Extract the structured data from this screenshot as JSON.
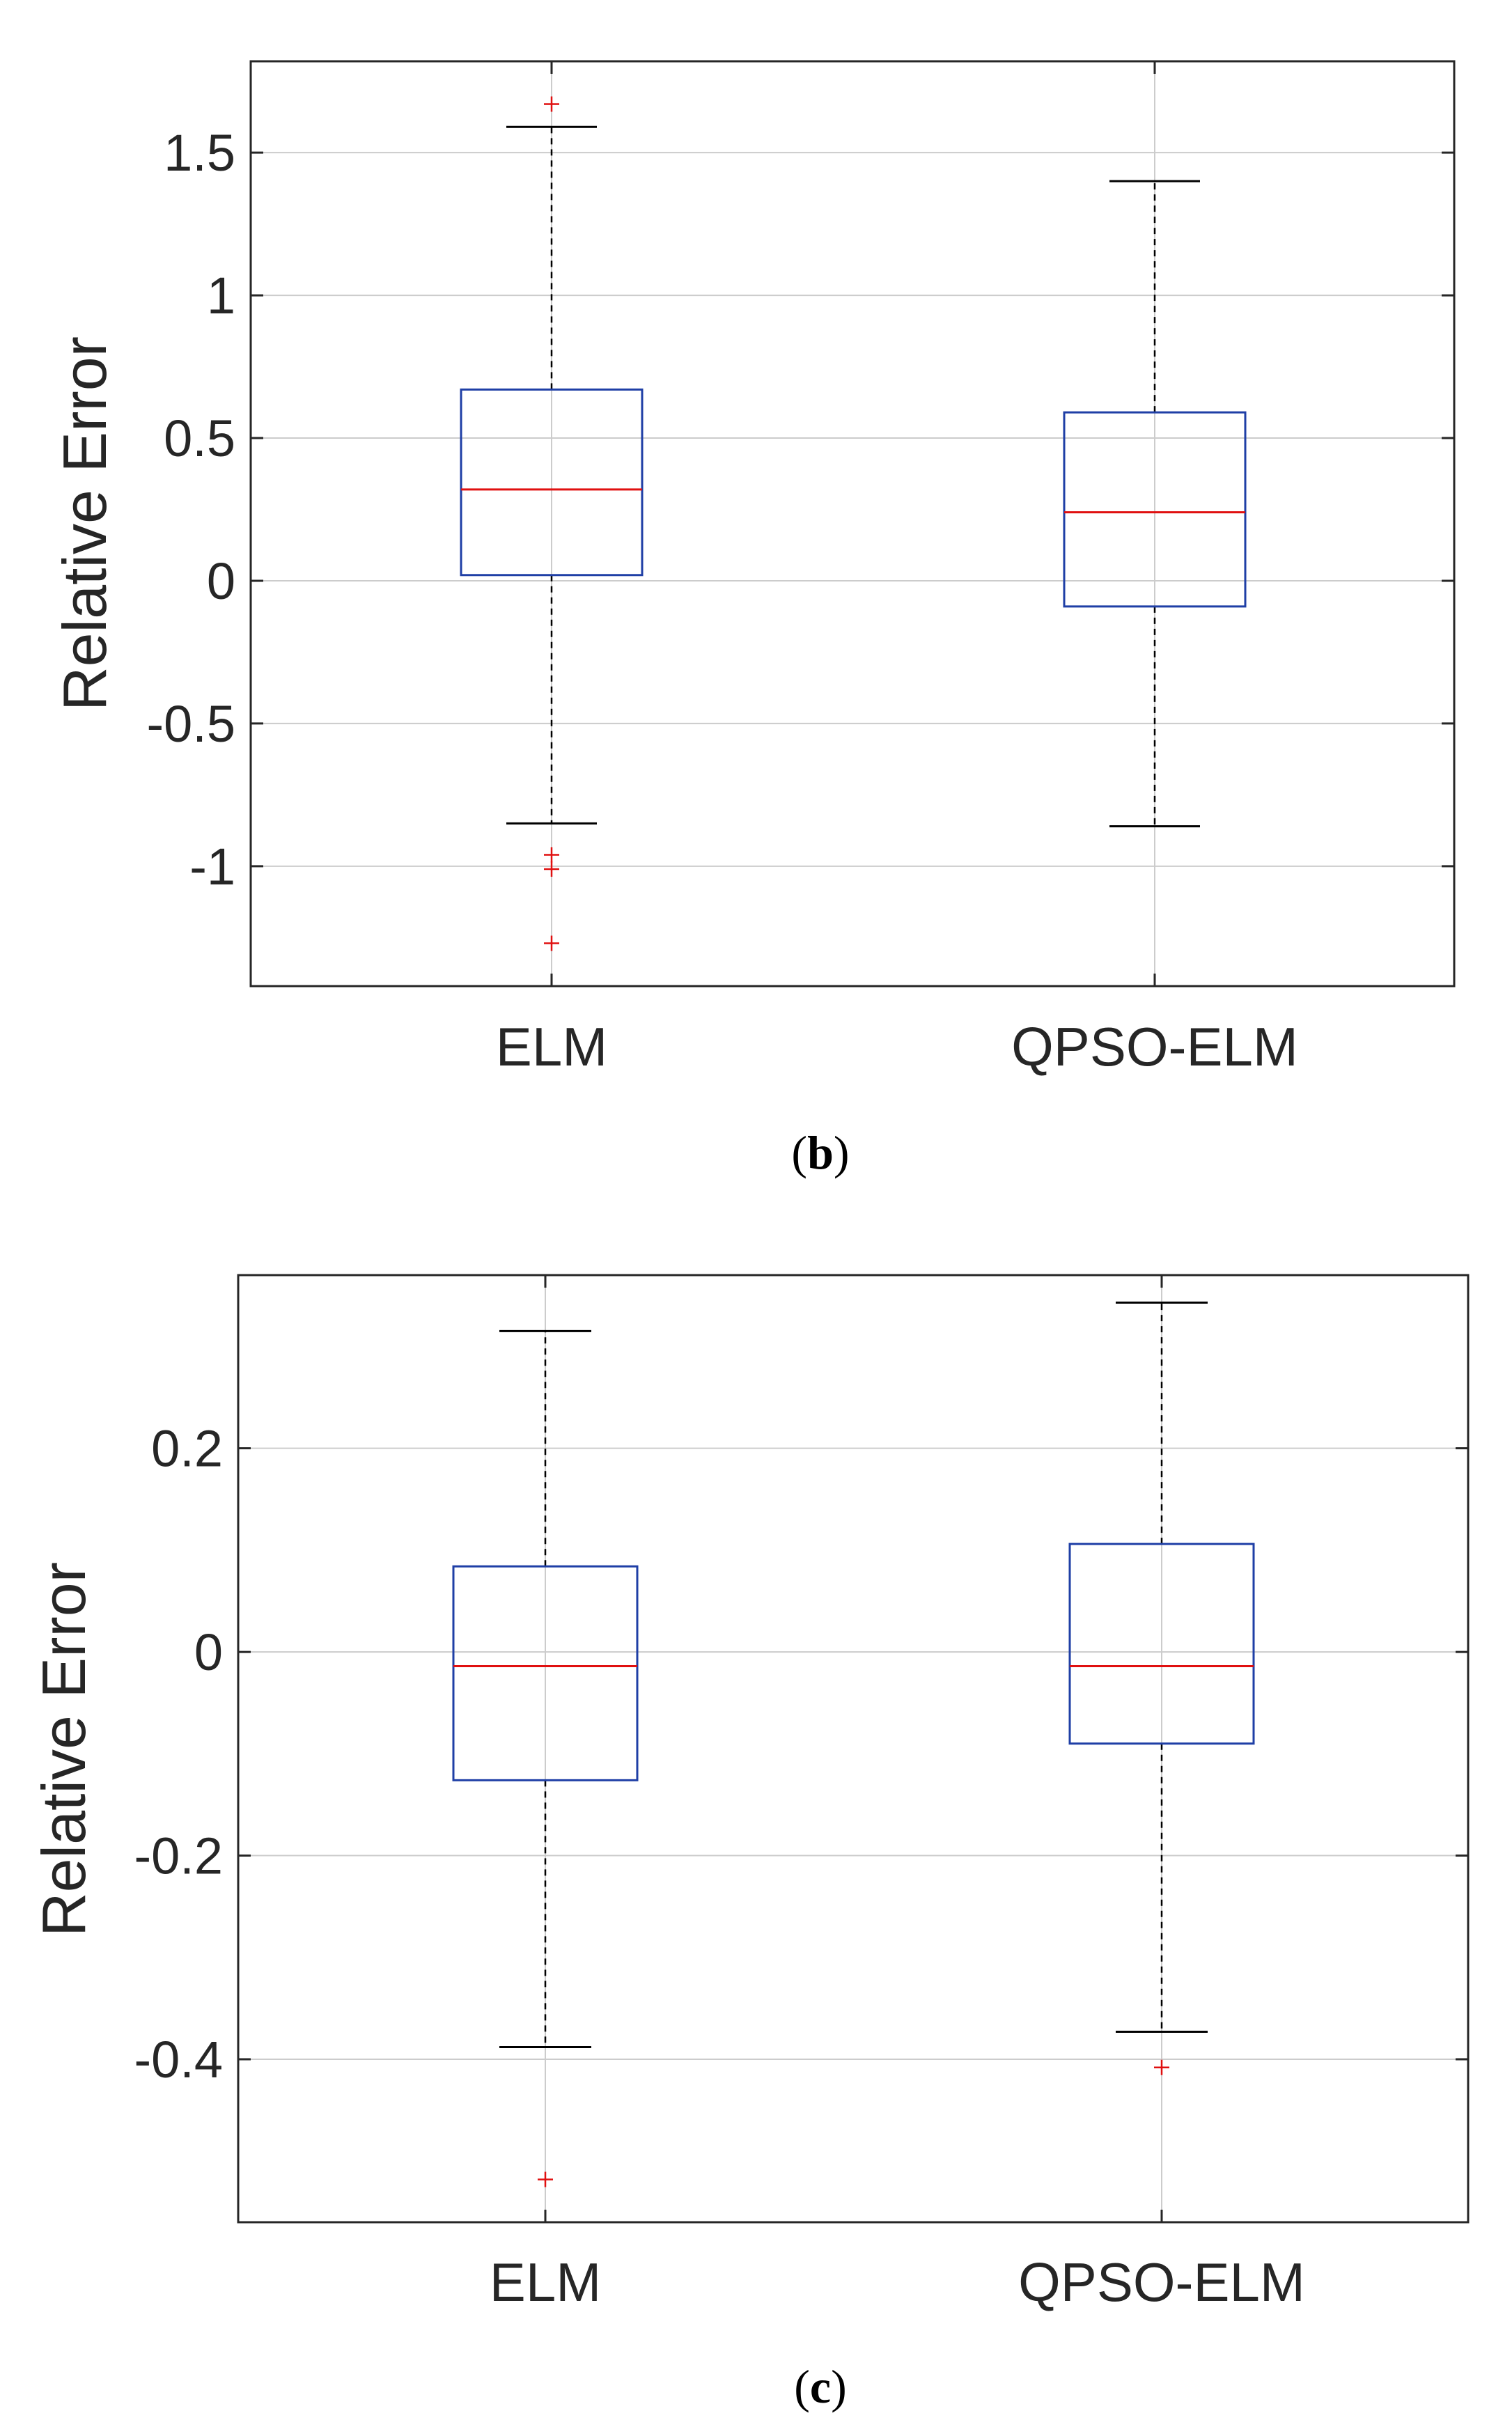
{
  "colors": {
    "box": "#1f3fa6",
    "median": "#e01010",
    "outlier": "#e01010",
    "whisker": "#000000",
    "grid": "#cccccc",
    "axes": "#262626"
  },
  "chart_data": [
    {
      "type": "box",
      "caption_letter": "b",
      "ylabel": "Relative Error",
      "ylim": [
        -1.42,
        1.82
      ],
      "yticks": [
        -1,
        -0.5,
        0,
        0.5,
        1,
        1.5
      ],
      "ytick_labels": [
        "-1",
        "-0.5",
        "0",
        "0.5",
        "1",
        "1.5"
      ],
      "grid": true,
      "categories": [
        "ELM",
        "QPSO-ELM"
      ],
      "boxes": [
        {
          "name": "ELM",
          "whisker_low": -0.85,
          "q1": 0.02,
          "median": 0.32,
          "q3": 0.67,
          "whisker_high": 1.59,
          "outliers": [
            1.67,
            -0.96,
            -1.01,
            -1.27
          ]
        },
        {
          "name": "QPSO-ELM",
          "whisker_low": -0.86,
          "q1": -0.09,
          "median": 0.24,
          "q3": 0.59,
          "whisker_high": 1.4,
          "outliers": []
        }
      ]
    },
    {
      "type": "box",
      "caption_letter": "c",
      "ylabel": "Relative Error",
      "ylim": [
        -0.56,
        0.37
      ],
      "yticks": [
        -0.4,
        -0.2,
        0,
        0.2
      ],
      "ytick_labels": [
        "-0.4",
        "-0.2",
        "0",
        "0.2"
      ],
      "grid": true,
      "categories": [
        "ELM",
        "QPSO-ELM"
      ],
      "boxes": [
        {
          "name": "ELM",
          "whisker_low": -0.388,
          "q1": -0.126,
          "median": -0.014,
          "q3": 0.084,
          "whisker_high": 0.315,
          "outliers": [
            -0.518
          ]
        },
        {
          "name": "QPSO-ELM",
          "whisker_low": -0.373,
          "q1": -0.09,
          "median": -0.014,
          "q3": 0.106,
          "whisker_high": 0.343,
          "outliers": [
            -0.408
          ]
        }
      ]
    }
  ]
}
